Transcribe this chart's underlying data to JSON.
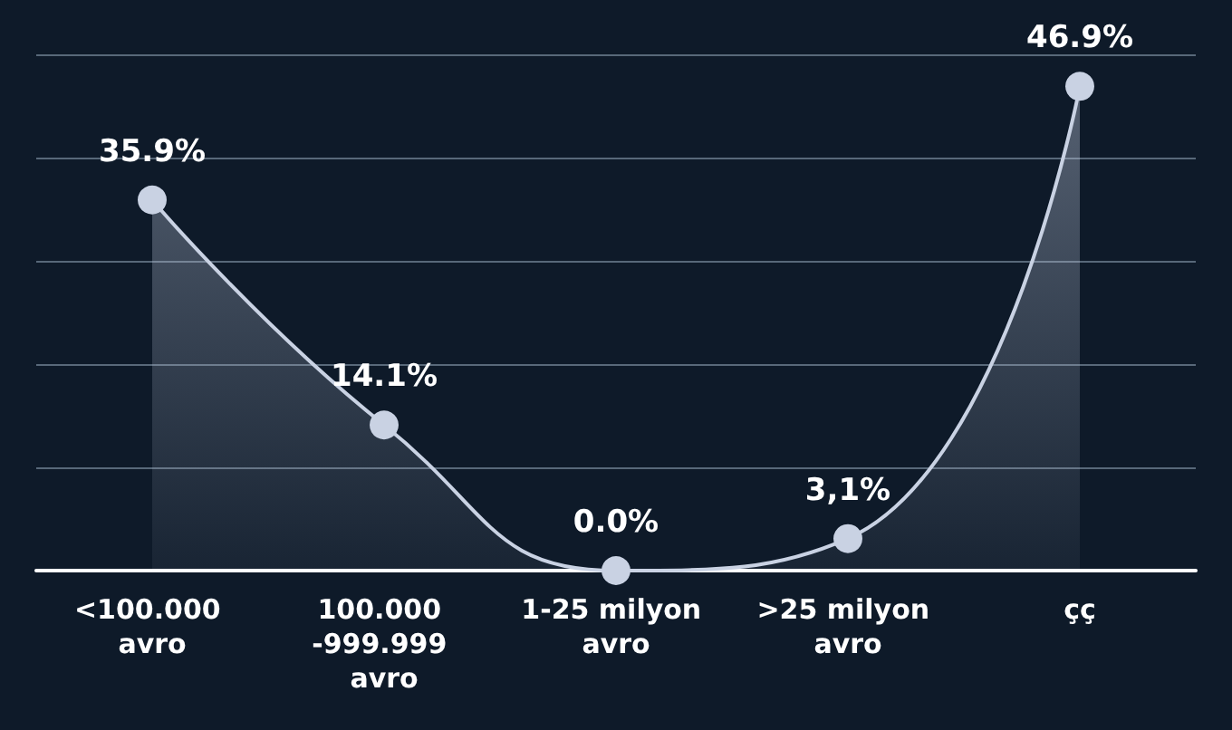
{
  "chart_data": {
    "type": "area",
    "categories": [
      "<100.000 avro",
      "100.000 -999.999 avro",
      "1-25 milyon avro",
      ">25 milyon avro",
      "çç"
    ],
    "values": [
      35.9,
      14.1,
      0.0,
      3.1,
      46.9
    ],
    "value_labels": [
      "35.9%",
      "14.1%",
      "0.0%",
      "3,1%",
      "46.9%"
    ],
    "color": "#c9d2e3",
    "ylim": [
      0,
      50
    ],
    "yticks": [
      {
        "value": 0,
        "label": null
      },
      {
        "value": 10,
        "label": null
      },
      {
        "value": 20,
        "label": null
      },
      {
        "value": 30,
        "label": null
      },
      {
        "value": 40,
        "label": null
      },
      {
        "value": 50,
        "label": null
      }
    ],
    "grid": "y",
    "marker": "circle"
  }
}
